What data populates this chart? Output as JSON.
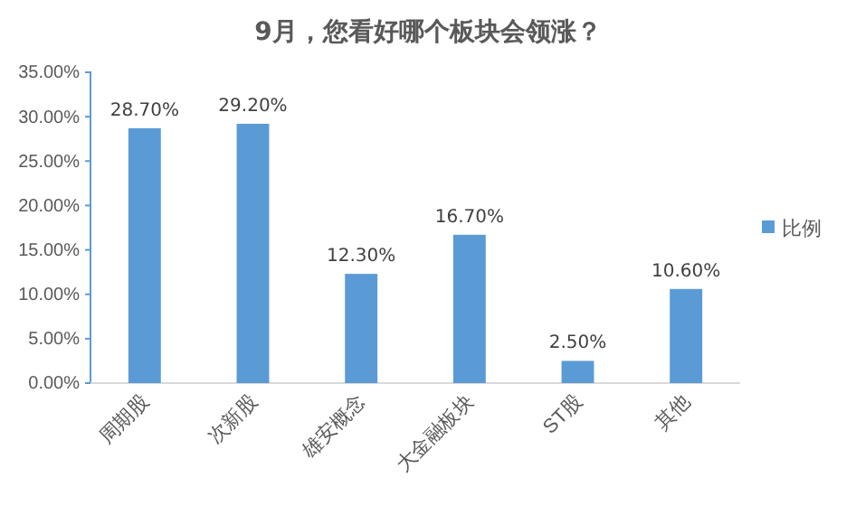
{
  "chart_data": {
    "type": "bar",
    "title": "9月，您看好哪个板块会领涨？",
    "categories": [
      "周期股",
      "次新股",
      "雄安概念",
      "大金融板块",
      "ST股",
      "其他"
    ],
    "series": [
      {
        "name": "比例",
        "color": "#5b9bd5",
        "values": [
          28.7,
          29.2,
          12.3,
          16.7,
          2.5,
          10.6
        ]
      }
    ],
    "value_labels": [
      "28.70%",
      "29.20%",
      "12.30%",
      "16.70%",
      "2.50%",
      "10.60%"
    ],
    "ylim": [
      0,
      35
    ],
    "yticks": [
      {
        "value": 0,
        "label": "0.00%"
      },
      {
        "value": 5,
        "label": "5.00%"
      },
      {
        "value": 10,
        "label": "10.00%"
      },
      {
        "value": 15,
        "label": "15.00%"
      },
      {
        "value": 20,
        "label": "20.00%"
      },
      {
        "value": 25,
        "label": "25.00%"
      },
      {
        "value": 30,
        "label": "30.00%"
      },
      {
        "value": 35,
        "label": "35.00%"
      }
    ],
    "grid": false,
    "legend": "right"
  }
}
